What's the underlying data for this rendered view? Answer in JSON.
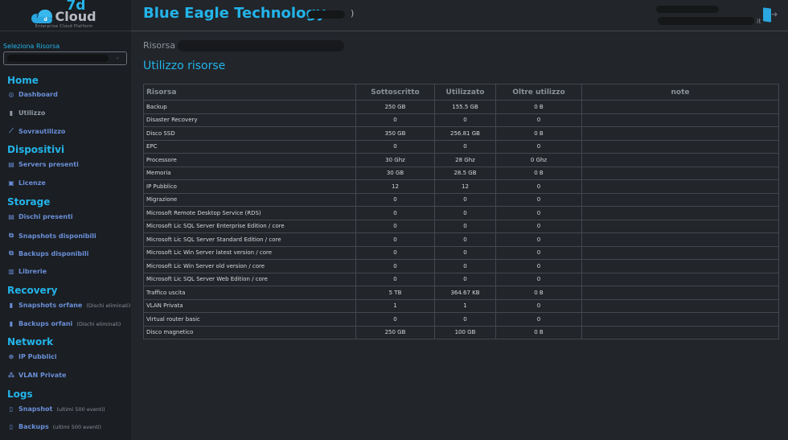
{
  "logo": {
    "brand_top": "7d",
    "brand_main": "Cloud",
    "tagline": "Enterprise Cloud Platform"
  },
  "resource_selector": {
    "label": "Seleziona Risorsa",
    "value": "",
    "chevron": "chevron-down-icon"
  },
  "sidebar": {
    "sections": [
      {
        "title": "Home",
        "items": [
          {
            "label": "Dashboard",
            "icon": "dashboard-icon",
            "glyph": "◎"
          },
          {
            "label": "Utilizzo",
            "icon": "bar-chart-icon",
            "glyph": "▮"
          },
          {
            "label": "Sovrautilizzo",
            "icon": "line-chart-icon",
            "glyph": "⟋"
          }
        ]
      },
      {
        "title": "Dispositivi",
        "items": [
          {
            "label": "Servers presenti",
            "icon": "server-icon",
            "glyph": "▤"
          },
          {
            "label": "Licenze",
            "icon": "license-icon",
            "glyph": "▣"
          }
        ]
      },
      {
        "title": "Storage",
        "items": [
          {
            "label": "Dischi presenti",
            "icon": "disk-icon",
            "glyph": "▤"
          },
          {
            "label": "Snapshots disponibili",
            "icon": "copy-icon",
            "glyph": "⧉"
          },
          {
            "label": "Backups disponibili",
            "icon": "copy-icon",
            "glyph": "⧉"
          },
          {
            "label": "Librerie",
            "icon": "book-icon",
            "glyph": "▥"
          }
        ]
      },
      {
        "title": "Recovery",
        "items": [
          {
            "label": "Snapshots orfane",
            "sub": "(Dischi eliminati)",
            "icon": "file-archive-icon",
            "glyph": "▮"
          },
          {
            "label": "Backups orfani",
            "sub": "(Dischi eliminati)",
            "icon": "file-backup-icon",
            "glyph": "▮"
          }
        ]
      },
      {
        "title": "Network",
        "items": [
          {
            "label": "IP Pubblici",
            "icon": "globe-icon",
            "glyph": "⊕"
          },
          {
            "label": "VLAN Private",
            "icon": "network-icon",
            "glyph": "⁂"
          }
        ]
      },
      {
        "title": "Logs",
        "items": [
          {
            "label": "Snapshot",
            "sub": "(ultimi 500 eventi)",
            "icon": "file-text-icon",
            "glyph": "▯"
          },
          {
            "label": "Backups",
            "sub": "(ultimi 500 eventi)",
            "icon": "file-text-icon",
            "glyph": "▯"
          }
        ]
      }
    ]
  },
  "header": {
    "company": "Blue Eagle Technology",
    "company_suffix": ")",
    "user_suffix": "it",
    "logout_icon": "logout-icon"
  },
  "main": {
    "resource_label": "Risorsa",
    "title": "Utilizzo risorse",
    "table": {
      "columns": [
        "Risorsa",
        "Sottoscritto",
        "Utilizzato",
        "Oltre utilizzo",
        "note"
      ],
      "rows": [
        [
          "Backup",
          "250 GB",
          "155.5 GB",
          "0 B",
          ""
        ],
        [
          "Disaster Recovery",
          "0",
          "0",
          "0",
          ""
        ],
        [
          "Disco SSD",
          "350 GB",
          "256.81 GB",
          "0 B",
          ""
        ],
        [
          "EPC",
          "0",
          "0",
          "0",
          ""
        ],
        [
          "Processore",
          "30 Ghz",
          "28 Ghz",
          "0 Ghz",
          ""
        ],
        [
          "Memoria",
          "30 GB",
          "28.5 GB",
          "0 B",
          ""
        ],
        [
          "IP Pubblico",
          "12",
          "12",
          "0",
          ""
        ],
        [
          "Migrazione",
          "0",
          "0",
          "0",
          ""
        ],
        [
          "Microsoft Remote Desktop Service (RDS)",
          "0",
          "0",
          "0",
          ""
        ],
        [
          "Microsoft Lic SQL Server Enterprise Edition / core",
          "0",
          "0",
          "0",
          ""
        ],
        [
          "Microsoft Lic SQL Server Standard Edition / core",
          "0",
          "0",
          "0",
          ""
        ],
        [
          "Microsoft Lic Win Server latest version / core",
          "0",
          "0",
          "0",
          ""
        ],
        [
          "Microsoft Lic Win Server old version / core",
          "0",
          "0",
          "0",
          ""
        ],
        [
          "Microsoft Lic SQL Server Web Edition / core",
          "0",
          "0",
          "0",
          ""
        ],
        [
          "Traffico uscita",
          "5 TB",
          "364.67 KB",
          "0 B",
          ""
        ],
        [
          "VLAN Privata",
          "1",
          "1",
          "0",
          ""
        ],
        [
          "Virtual router basic",
          "0",
          "0",
          "0",
          ""
        ],
        [
          "Disco magnetico",
          "250 GB",
          "100 GB",
          "0 B",
          ""
        ]
      ]
    }
  },
  "colors": {
    "accent": "#23b4ea",
    "nav_link": "#6a8fd8",
    "background": "#22252a",
    "sidebar": "#1b1e22",
    "border": "#44484e"
  }
}
